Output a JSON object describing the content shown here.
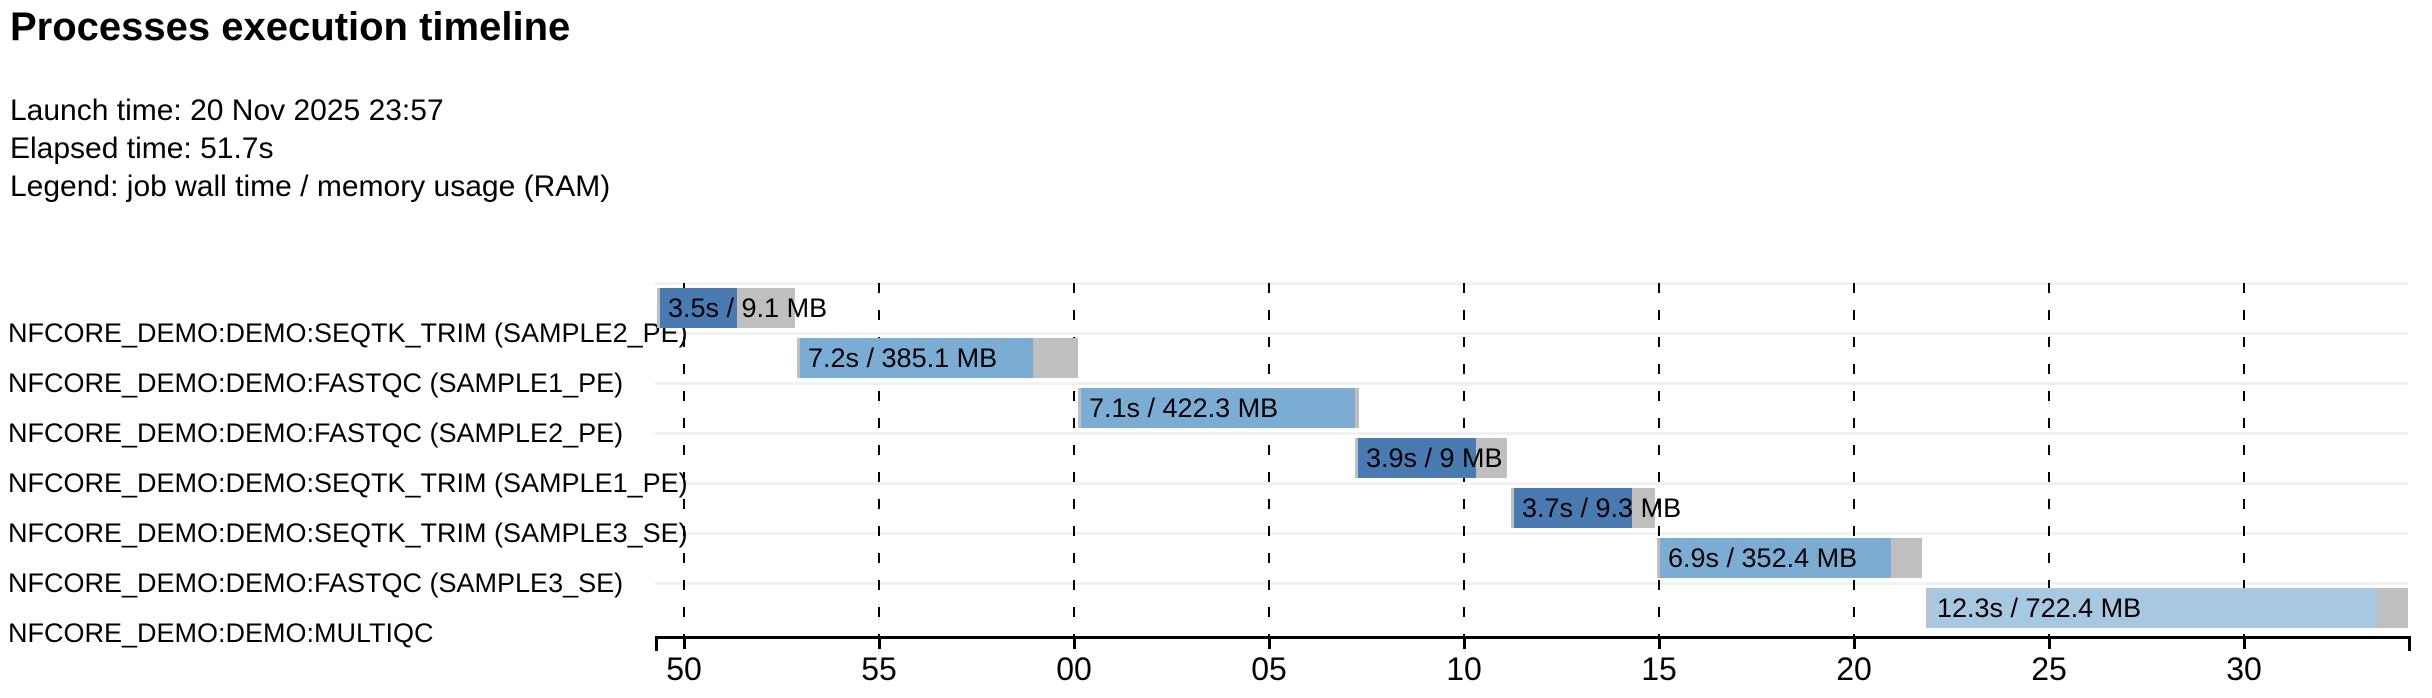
{
  "header": {
    "title": "Processes execution timeline",
    "launch": "Launch time: 20 Nov 2025 23:57",
    "elapsed": "Elapsed time: 51.7s",
    "legend": "Legend: job wall time / memory usage (RAM)"
  },
  "chart_data": {
    "type": "gantt",
    "title": "Processes execution timeline",
    "launch_time": "20 Nov 2025 23:57",
    "elapsed_time": "51.7s",
    "legend": "job wall time / memory usage (RAM)",
    "x_axis": {
      "unit": "seconds (minute wraps after 55)",
      "tick_labels": [
        "50",
        "55",
        "00",
        "05",
        "10",
        "15",
        "20",
        "25",
        "30"
      ],
      "tick_offsets_s": [
        0,
        5,
        10,
        15,
        20,
        25,
        30,
        35,
        40
      ],
      "gridlines": "vertical dashed black",
      "range_s": [
        -0.8,
        44.2
      ]
    },
    "colors": {
      "blue_dark": "#497AB1",
      "blue_medium": "#7AACD4",
      "blue_light": "#A6C8E1",
      "gray": "#BFBFBF",
      "separator": "#F1F1F1",
      "axis": "#000000"
    },
    "tasks": [
      {
        "process": "NFCORE_DEMO:DEMO:SEQTK_TRIM (SAMPLE2_PE)",
        "bar_label": "3.5s / 9.1 MB",
        "wall_time_s": 3.5,
        "memory": "9.1 MB",
        "color": "blue_dark",
        "start_s": -0.7,
        "run_end_s": 1.35,
        "end_s": 2.85
      },
      {
        "process": "NFCORE_DEMO:DEMO:FASTQC (SAMPLE1_PE)",
        "bar_label": "7.2s / 385.1 MB",
        "wall_time_s": 7.2,
        "memory": "385.1 MB",
        "color": "blue_medium",
        "start_s": 2.9,
        "run_end_s": 8.95,
        "end_s": 10.1
      },
      {
        "process": "NFCORE_DEMO:DEMO:FASTQC (SAMPLE2_PE)",
        "bar_label": "7.1s / 422.3 MB",
        "wall_time_s": 7.1,
        "memory": "422.3 MB",
        "color": "blue_medium",
        "start_s": 10.1,
        "run_end_s": 17.2,
        "end_s": 17.3
      },
      {
        "process": "NFCORE_DEMO:DEMO:SEQTK_TRIM (SAMPLE1_PE)",
        "bar_label": "3.9s / 9 MB",
        "wall_time_s": 3.9,
        "memory": "9 MB",
        "color": "blue_dark",
        "start_s": 17.2,
        "run_end_s": 20.3,
        "end_s": 21.1
      },
      {
        "process": "NFCORE_DEMO:DEMO:SEQTK_TRIM (SAMPLE3_SE)",
        "bar_label": "3.7s / 9.3 MB",
        "wall_time_s": 3.7,
        "memory": "9.3 MB",
        "color": "blue_dark",
        "start_s": 21.2,
        "run_end_s": 24.3,
        "end_s": 24.9
      },
      {
        "process": "NFCORE_DEMO:DEMO:FASTQC (SAMPLE3_SE)",
        "bar_label": "6.9s / 352.4 MB",
        "wall_time_s": 6.9,
        "memory": "352.4 MB",
        "color": "blue_medium",
        "start_s": 24.95,
        "run_end_s": 30.95,
        "end_s": 31.75
      },
      {
        "process": "NFCORE_DEMO:DEMO:MULTIQC",
        "bar_label": "12.3s / 722.4 MB",
        "wall_time_s": 12.3,
        "memory": "722.4 MB",
        "color": "blue_light",
        "start_s": 31.85,
        "run_end_s": 43.4,
        "end_s": 44.2
      }
    ]
  }
}
